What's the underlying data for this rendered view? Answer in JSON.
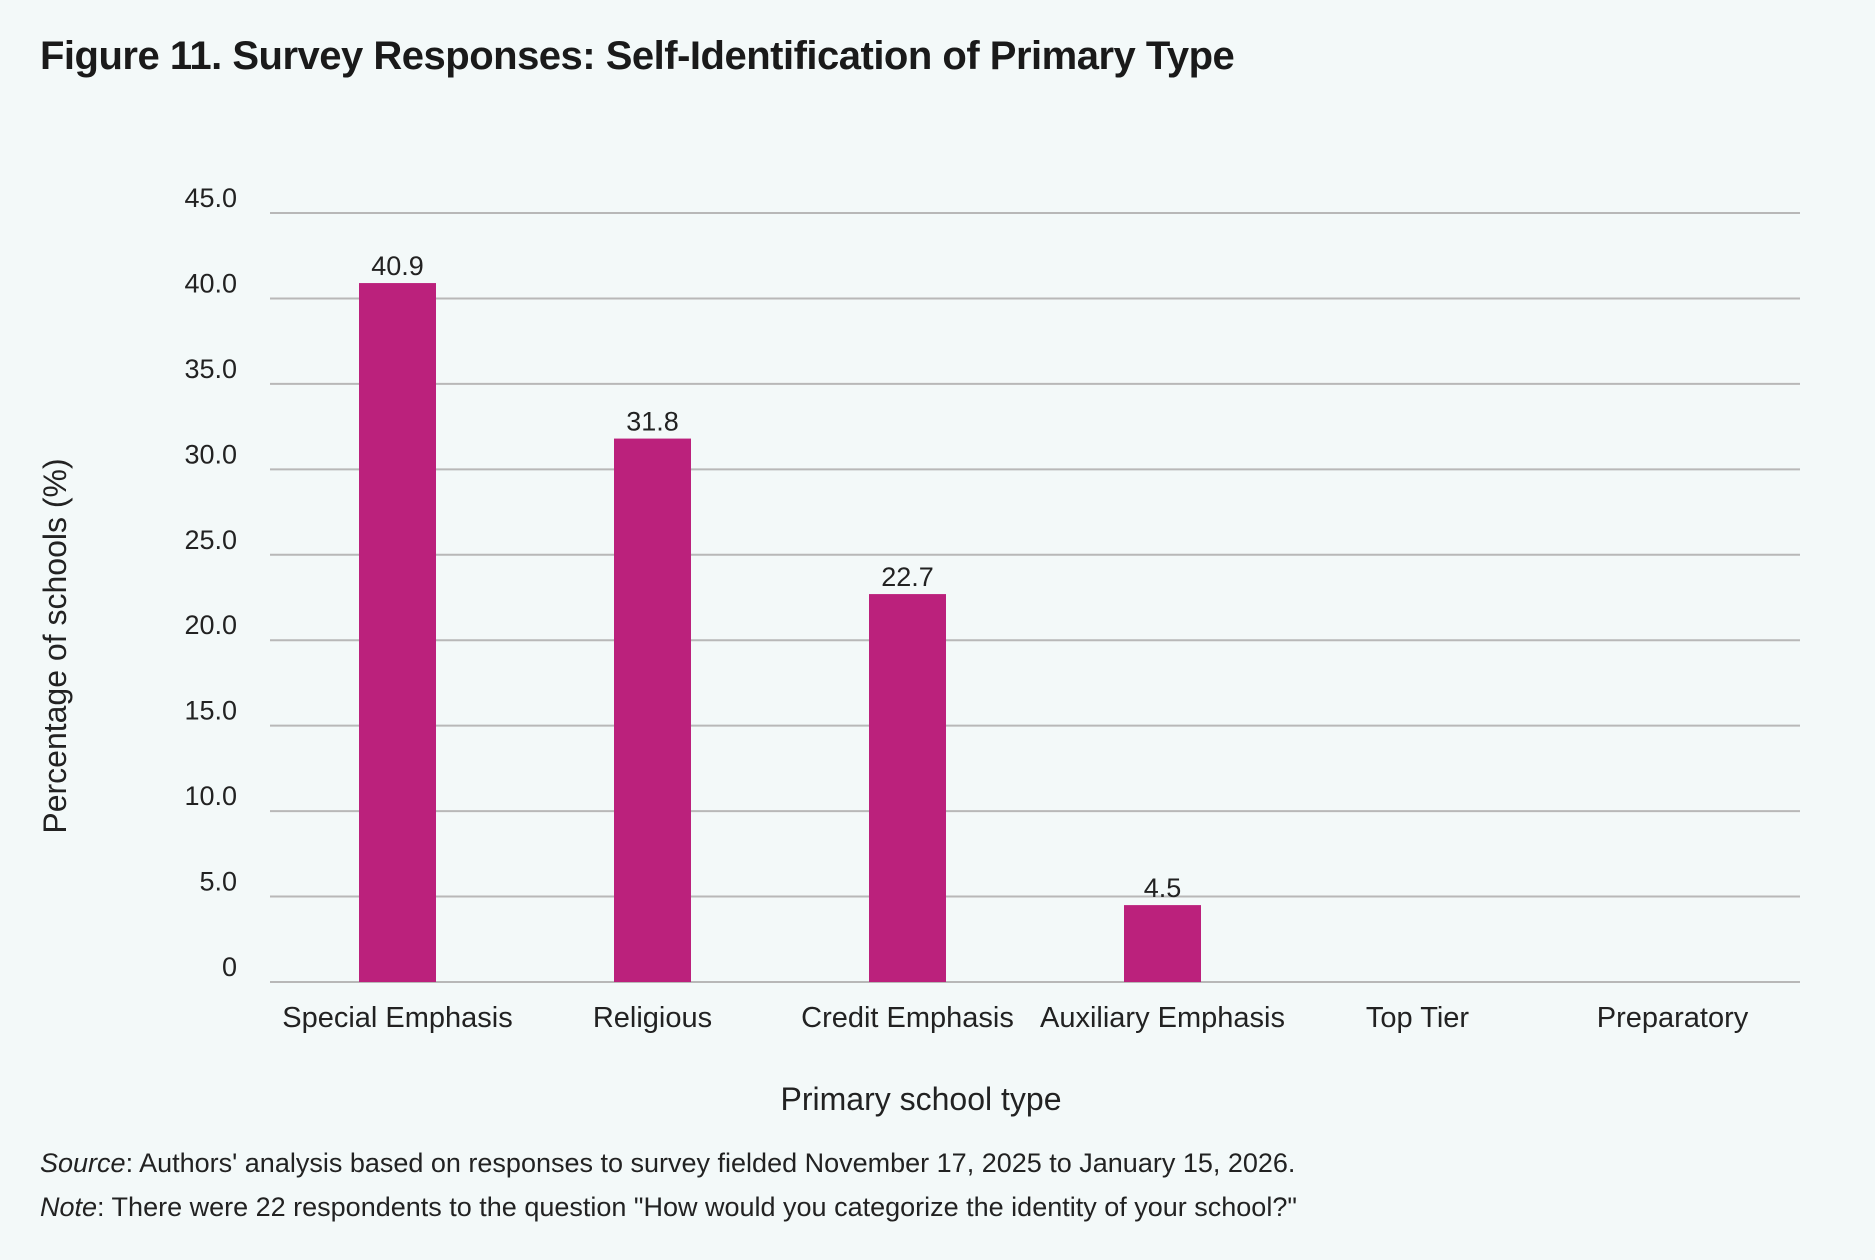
{
  "figure": {
    "title": "Figure 11. Survey Responses: Self-Identification of Primary Type",
    "source_label": "Source",
    "source_text": ": Authors' analysis based on responses to survey fielded November 17, 2025 to January 15, 2026.",
    "note_label": "Note",
    "note_text": ": There were 22 respondents to the question \"How would you categorize the identity of your school?\""
  },
  "colors": {
    "bar": "#bb217c",
    "grid": "#b8b8b8",
    "background": "#f3f9f9"
  },
  "chart_data": {
    "type": "bar",
    "title": "Figure 11. Survey Responses: Self-Identification of Primary Type",
    "xlabel": "Primary school type",
    "ylabel": "Percentage of schools (%)",
    "categories": [
      "Special Emphasis",
      "Religious",
      "Credit Emphasis",
      "Auxiliary Emphasis",
      "Top Tier",
      "Preparatory"
    ],
    "values": [
      40.9,
      31.8,
      22.7,
      4.5,
      0,
      0
    ],
    "data_labels": [
      "40.9",
      "31.8",
      "22.7",
      "4.5",
      "",
      ""
    ],
    "ylim": [
      0,
      45
    ],
    "yticks": [
      0,
      5,
      10,
      15,
      20,
      25,
      30,
      35,
      40,
      45
    ],
    "ytick_labels": [
      "0",
      "5.0",
      "10.0",
      "15.0",
      "20.0",
      "25.0",
      "30.0",
      "35.0",
      "40.0",
      "45.0"
    ],
    "grid": true,
    "legend": "none"
  }
}
